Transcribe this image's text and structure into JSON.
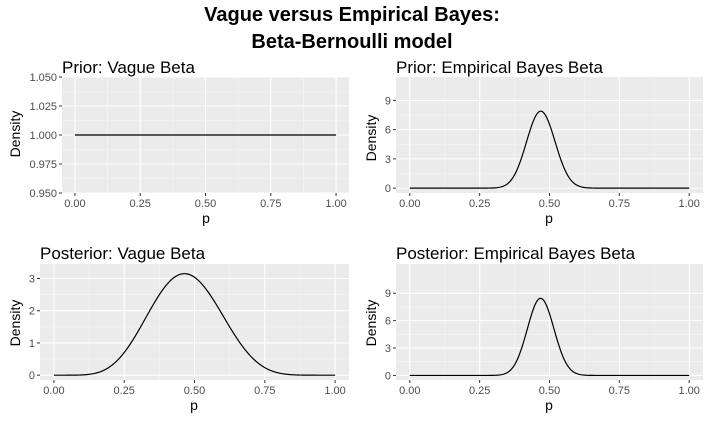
{
  "figure": {
    "title_line1": "Vague versus Empirical Bayes:",
    "title_line2": "Beta-Bernoulli model"
  },
  "chart_data": [
    {
      "type": "line",
      "title": "Prior: Vague Beta",
      "xlabel": "p",
      "ylabel": "Density",
      "xlim": [
        0,
        1
      ],
      "ylim": [
        0.95,
        1.05
      ],
      "x_ticks": [
        0,
        0.25,
        0.5,
        0.75,
        1
      ],
      "x_tick_labels": [
        "0.00",
        "0.25",
        "0.50",
        "0.75",
        "1.00"
      ],
      "y_ticks": [
        0.95,
        0.975,
        1.0,
        1.025,
        1.05
      ],
      "y_tick_labels": [
        "0.950",
        "0.975",
        "1.000",
        "1.025",
        "1.050"
      ],
      "grid": true,
      "curve": {
        "family": "beta",
        "alpha": 1,
        "beta": 1
      }
    },
    {
      "type": "line",
      "title": "Prior: Empirical Bayes Beta",
      "xlabel": "p",
      "ylabel": "Density",
      "xlim": [
        0,
        1
      ],
      "ylim": [
        -0.5,
        11.4
      ],
      "x_ticks": [
        0,
        0.25,
        0.5,
        0.75,
        1
      ],
      "x_tick_labels": [
        "0.00",
        "0.25",
        "0.50",
        "0.75",
        "1.00"
      ],
      "y_ticks": [
        0,
        3,
        6,
        9
      ],
      "y_tick_labels": [
        "0",
        "3",
        "6",
        "9"
      ],
      "grid": true,
      "curve": {
        "family": "beta",
        "alpha": 46,
        "beta": 52
      }
    },
    {
      "type": "line",
      "title": "Posterior: Vague Beta",
      "xlabel": "p",
      "ylabel": "Density",
      "xlim": [
        0,
        1
      ],
      "ylim": [
        -0.15,
        3.45
      ],
      "x_ticks": [
        0,
        0.25,
        0.5,
        0.75,
        1
      ],
      "x_tick_labels": [
        "0.00",
        "0.25",
        "0.50",
        "0.75",
        "1.00"
      ],
      "y_ticks": [
        0,
        1,
        2,
        3
      ],
      "y_tick_labels": [
        "0",
        "1",
        "2",
        "3"
      ],
      "grid": true,
      "curve": {
        "family": "beta",
        "alpha": 7.5,
        "beta": 8.5
      }
    },
    {
      "type": "line",
      "title": "Posterior: Empirical Bayes Beta",
      "xlabel": "p",
      "ylabel": "Density",
      "xlim": [
        0,
        1
      ],
      "ylim": [
        -0.5,
        12.2
      ],
      "x_ticks": [
        0,
        0.25,
        0.5,
        0.75,
        1
      ],
      "x_tick_labels": [
        "0.00",
        "0.25",
        "0.50",
        "0.75",
        "1.00"
      ],
      "y_ticks": [
        0,
        3,
        6,
        9
      ],
      "y_tick_labels": [
        "0",
        "3",
        "6",
        "9"
      ],
      "grid": true,
      "curve": {
        "family": "beta",
        "alpha": 52.5,
        "beta": 59.5
      }
    }
  ]
}
